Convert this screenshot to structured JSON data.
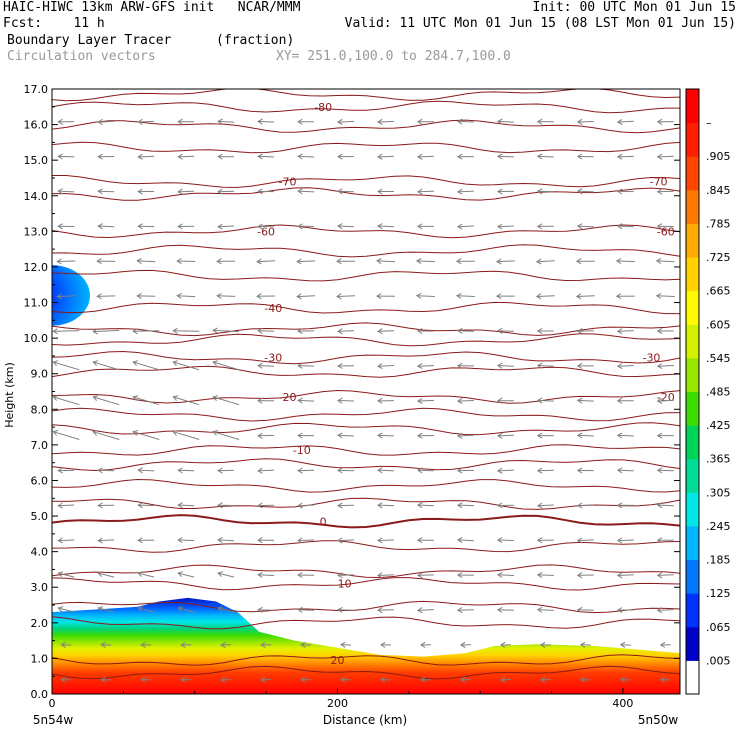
{
  "header": {
    "line1_left": "HAIC-HIWC 13km ARW-GFS init   NCAR/MMM",
    "line1_right": "Init: 00 UTC Mon 01 Jun 15",
    "fcst": "Fcst:    11 h",
    "valid": "Valid: 11 UTC Mon 01 Jun 15 (08 LST Mon 01 Jun 15)",
    "field_name": "Boundary Layer Tracer",
    "field_units": "(fraction)",
    "vectors_label": "Circulation vectors",
    "xy_label": "XY= 251.0,100.0 to 284.7,100.0"
  },
  "colors": {
    "contour": "#8b1a1a",
    "vector": "#808080",
    "background": "#ffffff"
  },
  "chart_data": {
    "type": "heatmap",
    "ylabel": "Height (km)",
    "xlabel": "Distance (km)",
    "x_start_label": "5n54w",
    "x_end_label": "5n50w",
    "xlim": [
      0,
      440
    ],
    "ylim": [
      0,
      17
    ],
    "y_ticks": [
      "0.0",
      "1.0",
      "2.0",
      "3.0",
      "4.0",
      "5.0",
      "6.0",
      "7.0",
      "8.0",
      "9.0",
      "10.0",
      "11.0",
      "12.0",
      "13.0",
      "14.0",
      "15.0",
      "16.0",
      "17.0"
    ],
    "x_ticks": [
      "0",
      "200",
      "400"
    ],
    "colorbar_labels": [
      ".005",
      ".065",
      ".125",
      ".185",
      ".245",
      ".305",
      ".365",
      ".425",
      ".485",
      ".545",
      ".605",
      ".665",
      ".725",
      ".785",
      ".845",
      ".905",
      "–"
    ],
    "colorbar_colors": [
      "#ffffff",
      "#0000c8",
      "#0032ff",
      "#0078ff",
      "#00b4ff",
      "#00e6e6",
      "#00dc96",
      "#00d25a",
      "#3cdc00",
      "#96e600",
      "#d2f000",
      "#fffa00",
      "#ffd200",
      "#ffaa00",
      "#ff7800",
      "#ff4600",
      "#ff1e00",
      "#ff0000"
    ],
    "tracer_top_km": [
      [
        0,
        2.3
      ],
      [
        20,
        2.35
      ],
      [
        40,
        2.4
      ],
      [
        60,
        2.45
      ],
      [
        75,
        2.6
      ],
      [
        95,
        2.7
      ],
      [
        115,
        2.6
      ],
      [
        130,
        2.3
      ],
      [
        145,
        1.75
      ],
      [
        170,
        1.5
      ],
      [
        200,
        1.3
      ],
      [
        230,
        1.1
      ],
      [
        260,
        1.05
      ],
      [
        290,
        1.15
      ],
      [
        310,
        1.35
      ],
      [
        340,
        1.4
      ],
      [
        380,
        1.35
      ],
      [
        410,
        1.25
      ],
      [
        440,
        1.15
      ]
    ],
    "upper_patch_km": {
      "x": 0,
      "center_km": 11.2,
      "top_km": 12.1,
      "bottom_km": 10.4
    },
    "temperature_contour_labels": [
      "-80",
      "-70",
      "-70",
      "-60",
      "-60",
      "-40",
      "-30",
      "-30",
      "-20",
      "-20",
      "-10",
      "0",
      "10",
      "20"
    ],
    "temperature_contours": [
      {
        "label": "-80",
        "z": 16.5,
        "lx": 190
      },
      {
        "label": "-70",
        "z": 14.4,
        "lx": 165
      },
      {
        "label": "-70",
        "z": 14.4,
        "lx": 425
      },
      {
        "label": "-60",
        "z": 13.0,
        "lx": 150
      },
      {
        "label": "-60",
        "z": 13.0,
        "lx": 430
      },
      {
        "label": "-40",
        "z": 10.85,
        "lx": 155
      },
      {
        "label": "-30",
        "z": 9.45,
        "lx": 155
      },
      {
        "label": "-30",
        "z": 9.45,
        "lx": 420
      },
      {
        "label": "-20",
        "z": 8.35,
        "lx": 165
      },
      {
        "label": "-20",
        "z": 8.35,
        "lx": 430
      },
      {
        "label": "-10",
        "z": 6.85,
        "lx": 175
      },
      {
        "label": "0",
        "z": 4.85,
        "lx": 190
      },
      {
        "label": "10",
        "z": 3.1,
        "lx": 205
      },
      {
        "label": "20",
        "z": 0.95,
        "lx": 200
      }
    ],
    "extra_contour_levels_km": [
      16.85,
      15.95,
      15.35,
      14.05,
      12.45,
      11.75,
      10.25,
      9.95,
      9.05,
      7.85,
      7.45,
      6.45,
      5.85,
      5.35,
      4.15,
      3.45,
      2.45,
      2.0,
      0.6
    ],
    "vectors": "horizontal flow mostly westward (leftward) at all levels; stronger near 8-10 km on western half"
  }
}
